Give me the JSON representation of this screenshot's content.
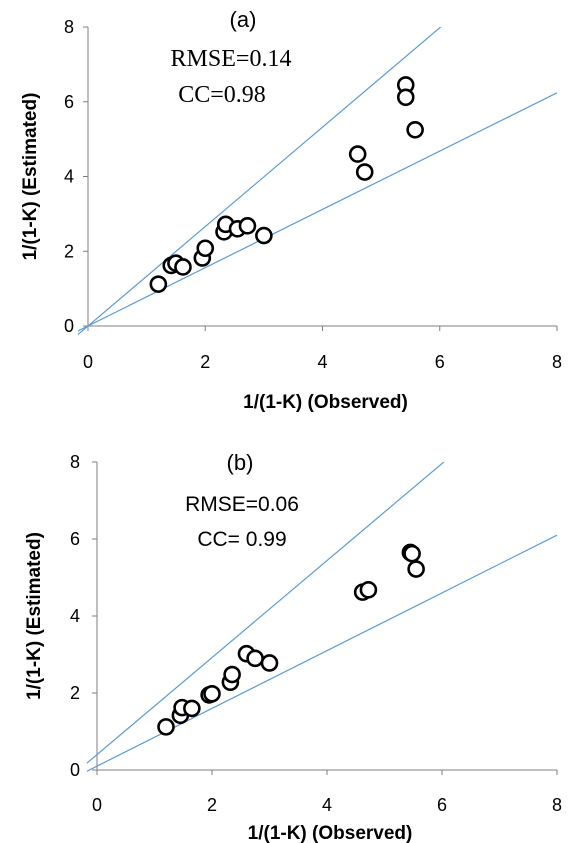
{
  "chart_data": [
    {
      "type": "scatter",
      "panel_label": "(a)",
      "annotations": [
        "RMSE=0.14",
        "CC=0.98"
      ],
      "xlabel": "1/(1-K) (Observed)",
      "ylabel": "1/(1-K) (Estimated)",
      "xlim": [
        0,
        8
      ],
      "ylim": [
        0,
        8
      ],
      "xticks": [
        "0",
        "2",
        "4",
        "6",
        "8"
      ],
      "yticks": [
        "0",
        "2",
        "4",
        "6",
        "8"
      ],
      "grid": false,
      "marker": "open-circle",
      "reference_lines": [
        {
          "y_at_x0": 0,
          "slope": 1.33
        },
        {
          "y_at_x0": 0,
          "slope": 0.78
        }
      ],
      "points": [
        {
          "x": 1.2,
          "y": 1.12
        },
        {
          "x": 1.42,
          "y": 1.62
        },
        {
          "x": 1.5,
          "y": 1.68
        },
        {
          "x": 1.62,
          "y": 1.58
        },
        {
          "x": 1.95,
          "y": 1.82
        },
        {
          "x": 2.0,
          "y": 2.08
        },
        {
          "x": 2.32,
          "y": 2.52
        },
        {
          "x": 2.35,
          "y": 2.72
        },
        {
          "x": 2.55,
          "y": 2.6
        },
        {
          "x": 2.72,
          "y": 2.68
        },
        {
          "x": 3.0,
          "y": 2.42
        },
        {
          "x": 4.6,
          "y": 4.6
        },
        {
          "x": 4.72,
          "y": 4.12
        },
        {
          "x": 5.42,
          "y": 6.45
        },
        {
          "x": 5.42,
          "y": 6.12
        },
        {
          "x": 5.58,
          "y": 5.25
        }
      ]
    },
    {
      "type": "scatter",
      "panel_label": "(b)",
      "annotations": [
        "RMSE=0.06",
        "CC= 0.99"
      ],
      "xlabel": "1/(1-K) (Observed)",
      "ylabel": "1/(1-K) (Estimated)",
      "xlim": [
        0,
        8
      ],
      "ylim": [
        0,
        8
      ],
      "xticks": [
        "0",
        "2",
        "4",
        "6",
        "8"
      ],
      "yticks": [
        "0",
        "2",
        "4",
        "6",
        "8"
      ],
      "grid": false,
      "marker": "open-circle",
      "reference_lines": [
        {
          "y_at_x0": 0.4,
          "slope": 1.26
        },
        {
          "y_at_x0": 0.1,
          "slope": 0.75
        }
      ],
      "points": [
        {
          "x": 1.2,
          "y": 1.12
        },
        {
          "x": 1.45,
          "y": 1.42
        },
        {
          "x": 1.48,
          "y": 1.62
        },
        {
          "x": 1.65,
          "y": 1.6
        },
        {
          "x": 1.95,
          "y": 1.95
        },
        {
          "x": 2.0,
          "y": 1.98
        },
        {
          "x": 2.32,
          "y": 2.28
        },
        {
          "x": 2.35,
          "y": 2.48
        },
        {
          "x": 2.6,
          "y": 3.02
        },
        {
          "x": 2.75,
          "y": 2.9
        },
        {
          "x": 3.0,
          "y": 2.78
        },
        {
          "x": 4.62,
          "y": 4.62
        },
        {
          "x": 4.72,
          "y": 4.68
        },
        {
          "x": 5.45,
          "y": 5.65
        },
        {
          "x": 5.48,
          "y": 5.62
        },
        {
          "x": 5.55,
          "y": 5.22
        }
      ]
    }
  ],
  "colors": {
    "axis": "#7f7f7f",
    "reference_line": "#5b9bd5",
    "marker_stroke": "#000000",
    "marker_fill": "#ffffff"
  }
}
